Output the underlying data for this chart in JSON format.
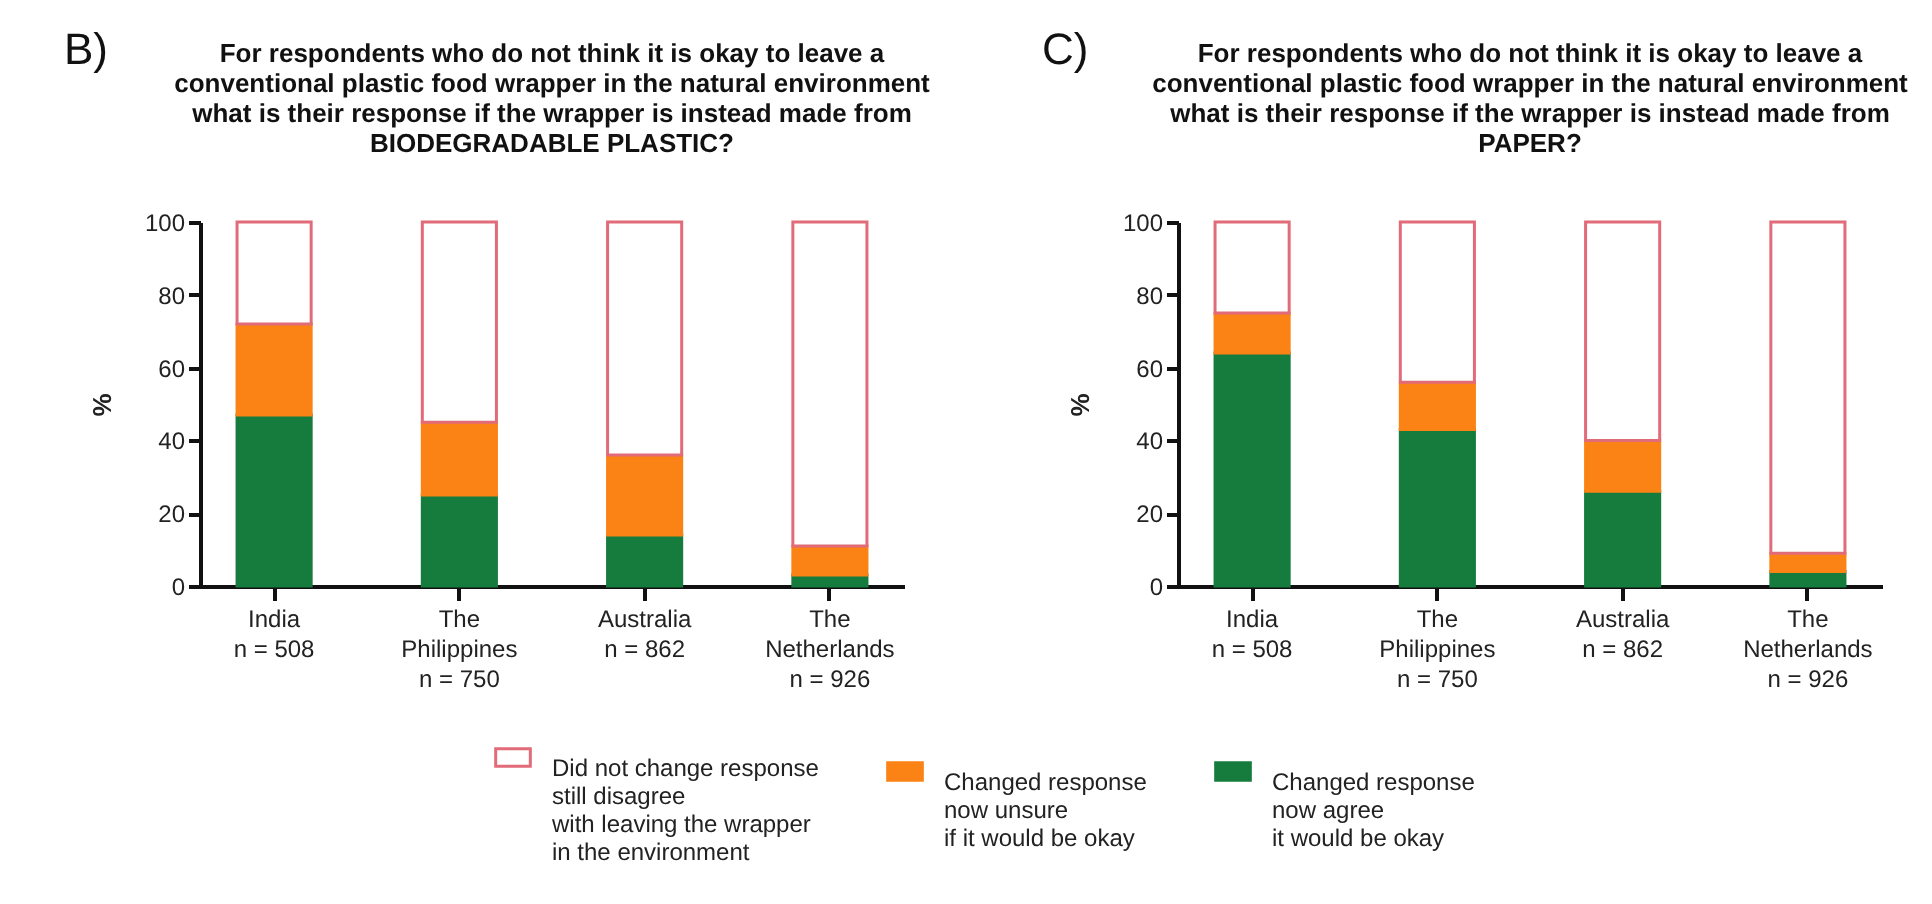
{
  "chart_data": [
    {
      "type": "bar",
      "title": "For respondents who do not think it is okay to leave a\nconventional plastic food wrapper in the natural environment\nwhat is their response if the wrapper is instead made from\nBIODEGRADABLE PLASTIC?",
      "annotations": [
        "B)"
      ],
      "ylabel": "%",
      "categories": [
        "India\nn = 508",
        "The\nPhilippines\nn = 750",
        "Australia\nn = 862",
        "The\nNetherlands\nn = 926"
      ],
      "stacked": true,
      "ylim": [
        0,
        100
      ],
      "yticks": [
        0,
        20,
        40,
        60,
        80,
        100
      ],
      "legend": "bottom",
      "series": [
        {
          "name": "Changed response\nnow agree\nit would be okay",
          "color": "#167c3e",
          "values": [
            47,
            25,
            14,
            3
          ]
        },
        {
          "name": "Changed response\nnow unsure\nif it would be okay",
          "color": "#fb8214",
          "values": [
            25,
            20,
            22,
            8
          ]
        },
        {
          "name": "Did not change response\nstill disagree\nwith leaving the wrapper\nin the environment",
          "color": "#ffffff",
          "values": [
            28,
            55,
            64,
            89
          ]
        }
      ]
    },
    {
      "type": "bar",
      "title": "For respondents who do not think it is okay to leave a\nconventional plastic food wrapper in the natural environment\nwhat is their response if the wrapper is instead made from\nPAPER?",
      "annotations": [
        "C)"
      ],
      "ylabel": "%",
      "categories": [
        "India\nn = 508",
        "The\nPhilippines\nn = 750",
        "Australia\nn = 862",
        "The\nNetherlands\nn = 926"
      ],
      "stacked": true,
      "ylim": [
        0,
        100
      ],
      "yticks": [
        0,
        20,
        40,
        60,
        80,
        100
      ],
      "legend": "bottom",
      "series": [
        {
          "name": "Changed response\nnow agree\nit would be okay",
          "color": "#167c3e",
          "values": [
            64,
            43,
            26,
            4
          ]
        },
        {
          "name": "Changed response\nnow unsure\nif it would be okay",
          "color": "#fb8214",
          "values": [
            11,
            13,
            14,
            5
          ]
        },
        {
          "name": "Did not change response\nstill disagree\nwith leaving the wrapper\nin the environment",
          "color": "#ffffff",
          "values": [
            25,
            44,
            60,
            91
          ]
        }
      ]
    }
  ]
}
